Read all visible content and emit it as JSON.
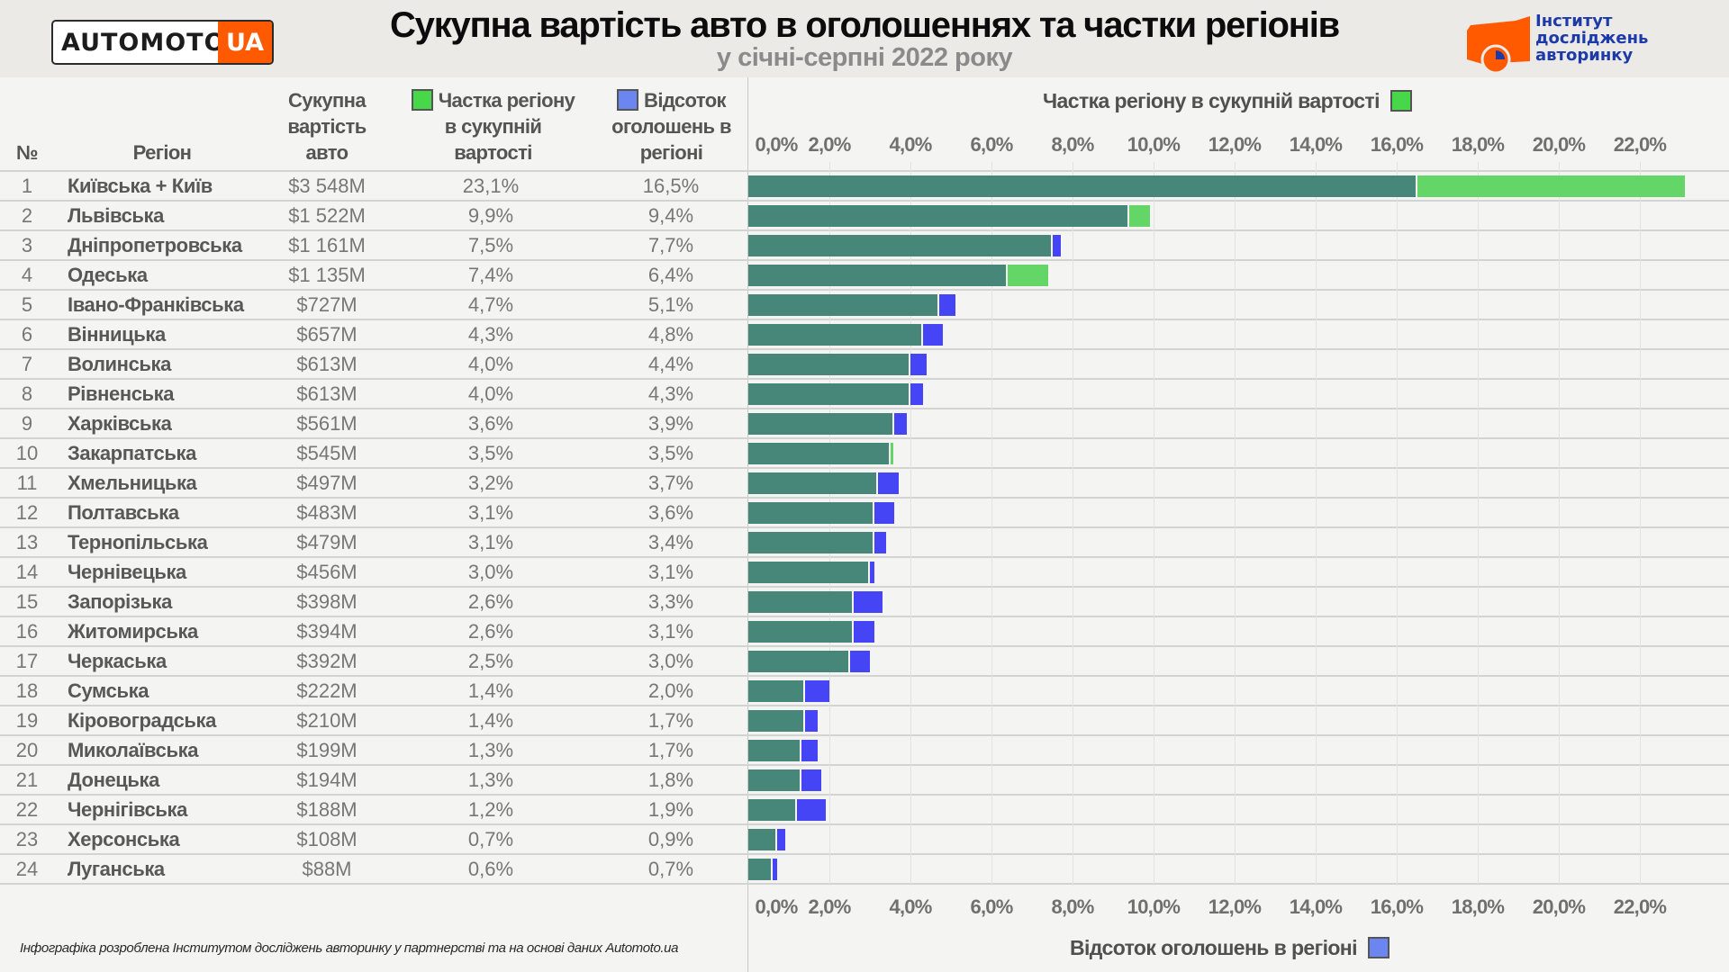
{
  "header": {
    "title": "Сукупна вартість авто в оголошеннях та частки регіонів",
    "subtitle": "у січні-серпні 2022 року",
    "logo_left": {
      "word": "AUTOMOTO",
      "suffix": "UA"
    },
    "logo_right": {
      "line1": "Інститут",
      "line2": "досліджень",
      "line3": "авторинку"
    }
  },
  "colors": {
    "base": "#47877a",
    "share": "#64d667",
    "listings": "#4545f5",
    "accent_orange": "#ff5a00",
    "institute_blue": "#1d3aa8"
  },
  "table": {
    "headers": {
      "num": "№",
      "region": "Регіон",
      "value_line1": "Сукупна",
      "value_line2": "вартість",
      "value_line3": "авто",
      "share_line1": "Частка регіону",
      "share_line2": "в сукупній",
      "share_line3": "вартості",
      "listings_line1": "Відсоток",
      "listings_line2": "оголошень в",
      "listings_line3": "регіоні"
    },
    "rows": [
      {
        "num": "1",
        "region": "Київська + Київ",
        "value": "$3 548M",
        "share": "23,1%",
        "listings": "16,5%"
      },
      {
        "num": "2",
        "region": "Львівська",
        "value": "$1 522M",
        "share": "9,9%",
        "listings": "9,4%"
      },
      {
        "num": "3",
        "region": "Дніпропетровська",
        "value": "$1 161M",
        "share": "7,5%",
        "listings": "7,7%"
      },
      {
        "num": "4",
        "region": "Одеська",
        "value": "$1 135M",
        "share": "7,4%",
        "listings": "6,4%"
      },
      {
        "num": "5",
        "region": "Івано-Франківська",
        "value": "$727M",
        "share": "4,7%",
        "listings": "5,1%"
      },
      {
        "num": "6",
        "region": "Вінницька",
        "value": "$657M",
        "share": "4,3%",
        "listings": "4,8%"
      },
      {
        "num": "7",
        "region": "Волинська",
        "value": "$613M",
        "share": "4,0%",
        "listings": "4,4%"
      },
      {
        "num": "8",
        "region": "Рівненська",
        "value": "$613M",
        "share": "4,0%",
        "listings": "4,3%"
      },
      {
        "num": "9",
        "region": "Харківська",
        "value": "$561M",
        "share": "3,6%",
        "listings": "3,9%"
      },
      {
        "num": "10",
        "region": "Закарпатська",
        "value": "$545M",
        "share": "3,5%",
        "listings": "3,5%"
      },
      {
        "num": "11",
        "region": "Хмельницька",
        "value": "$497M",
        "share": "3,2%",
        "listings": "3,7%"
      },
      {
        "num": "12",
        "region": "Полтавська",
        "value": "$483M",
        "share": "3,1%",
        "listings": "3,6%"
      },
      {
        "num": "13",
        "region": "Тернопільська",
        "value": "$479M",
        "share": "3,1%",
        "listings": "3,4%"
      },
      {
        "num": "14",
        "region": "Чернівецька",
        "value": "$456M",
        "share": "3,0%",
        "listings": "3,1%"
      },
      {
        "num": "15",
        "region": "Запорізька",
        "value": "$398M",
        "share": "2,6%",
        "listings": "3,3%"
      },
      {
        "num": "16",
        "region": "Житомирська",
        "value": "$394M",
        "share": "2,6%",
        "listings": "3,1%"
      },
      {
        "num": "17",
        "region": "Черкаська",
        "value": "$392M",
        "share": "2,5%",
        "listings": "3,0%"
      },
      {
        "num": "18",
        "region": "Сумська",
        "value": "$222M",
        "share": "1,4%",
        "listings": "2,0%"
      },
      {
        "num": "19",
        "region": "Кіровоградська",
        "value": "$210M",
        "share": "1,4%",
        "listings": "1,7%"
      },
      {
        "num": "20",
        "region": "Миколаївська",
        "value": "$199M",
        "share": "1,3%",
        "listings": "1,7%"
      },
      {
        "num": "21",
        "region": "Донецька",
        "value": "$194M",
        "share": "1,3%",
        "listings": "1,8%"
      },
      {
        "num": "22",
        "region": "Чернігівська",
        "value": "$188M",
        "share": "1,2%",
        "listings": "1,9%"
      },
      {
        "num": "23",
        "region": "Херсонська",
        "value": "$108M",
        "share": "0,7%",
        "listings": "0,9%"
      },
      {
        "num": "24",
        "region": "Луганська",
        "value": "$88M",
        "share": "0,6%",
        "listings": "0,7%"
      }
    ]
  },
  "chart_data": {
    "type": "bar",
    "orientation": "horizontal",
    "title_top": "Частка регіону в сукупній вартості",
    "title_bottom": "Відсоток оголошень в регіоні",
    "xlim": [
      0,
      23.5
    ],
    "ticks": [
      0,
      2,
      4,
      6,
      8,
      10,
      12,
      14,
      16,
      18,
      20,
      22
    ],
    "tick_labels": [
      "0,0%",
      "2,0%",
      "4,0%",
      "6,0%",
      "8,0%",
      "10,0%",
      "12,0%",
      "14,0%",
      "16,0%",
      "18,0%",
      "20,0%",
      "22,0%"
    ],
    "grid": true,
    "categories": [
      "Київська + Київ",
      "Львівська",
      "Дніпропетровська",
      "Одеська",
      "Івано-Франківська",
      "Вінницька",
      "Волинська",
      "Рівненська",
      "Харківська",
      "Закарпатська",
      "Хмельницька",
      "Полтавська",
      "Тернопільська",
      "Чернівецька",
      "Запорізька",
      "Житомирська",
      "Черкаська",
      "Сумська",
      "Кіровоградська",
      "Миколаївська",
      "Донецька",
      "Чернігівська",
      "Херсонська",
      "Луганська"
    ],
    "series": [
      {
        "name": "Частка регіону в сукупній вартості",
        "values": [
          23.1,
          9.9,
          7.5,
          7.4,
          4.7,
          4.3,
          4.0,
          4.0,
          3.6,
          3.5,
          3.2,
          3.1,
          3.1,
          3.0,
          2.6,
          2.6,
          2.5,
          1.4,
          1.4,
          1.3,
          1.3,
          1.2,
          0.7,
          0.6
        ]
      },
      {
        "name": "Відсоток оголошень в регіоні",
        "values": [
          16.5,
          9.4,
          7.7,
          6.4,
          5.1,
          4.8,
          4.4,
          4.3,
          3.9,
          3.5,
          3.7,
          3.6,
          3.4,
          3.1,
          3.3,
          3.1,
          3.0,
          2.0,
          1.7,
          1.7,
          1.8,
          1.9,
          0.9,
          0.7
        ]
      }
    ]
  },
  "footer": {
    "credit": "Інфографіка розроблена Інститутом досліджень авторинку у партнерстві та на основі даних Automoto.ua"
  }
}
